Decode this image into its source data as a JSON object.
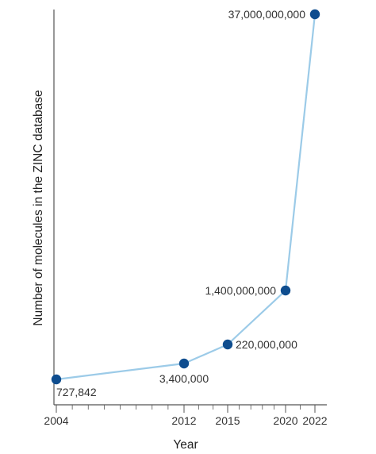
{
  "chart_data": {
    "type": "line",
    "title": "",
    "xlabel": "Year",
    "ylabel": "Number of molecules in the ZINC database",
    "x_ticks": [
      "2004",
      "2012",
      "2015",
      "2020",
      "2022"
    ],
    "series": [
      {
        "points": [
          {
            "x": 2004,
            "y": 727842,
            "label": "727,842"
          },
          {
            "x": 2012,
            "y": 3400000,
            "label": "3,400,000"
          },
          {
            "x": 2015,
            "y": 220000000,
            "label": "220,000,000"
          },
          {
            "x": 2020,
            "y": 1400000000,
            "label": "1,400,000,000"
          },
          {
            "x": 2022,
            "y": 37000000000,
            "label": "37,000,000,000"
          }
        ]
      }
    ],
    "xlim": [
      2004,
      2022
    ],
    "grid": false,
    "colors": {
      "line": "#9ccbe8",
      "marker": "#0e4d8f",
      "axis": "#555555"
    }
  }
}
